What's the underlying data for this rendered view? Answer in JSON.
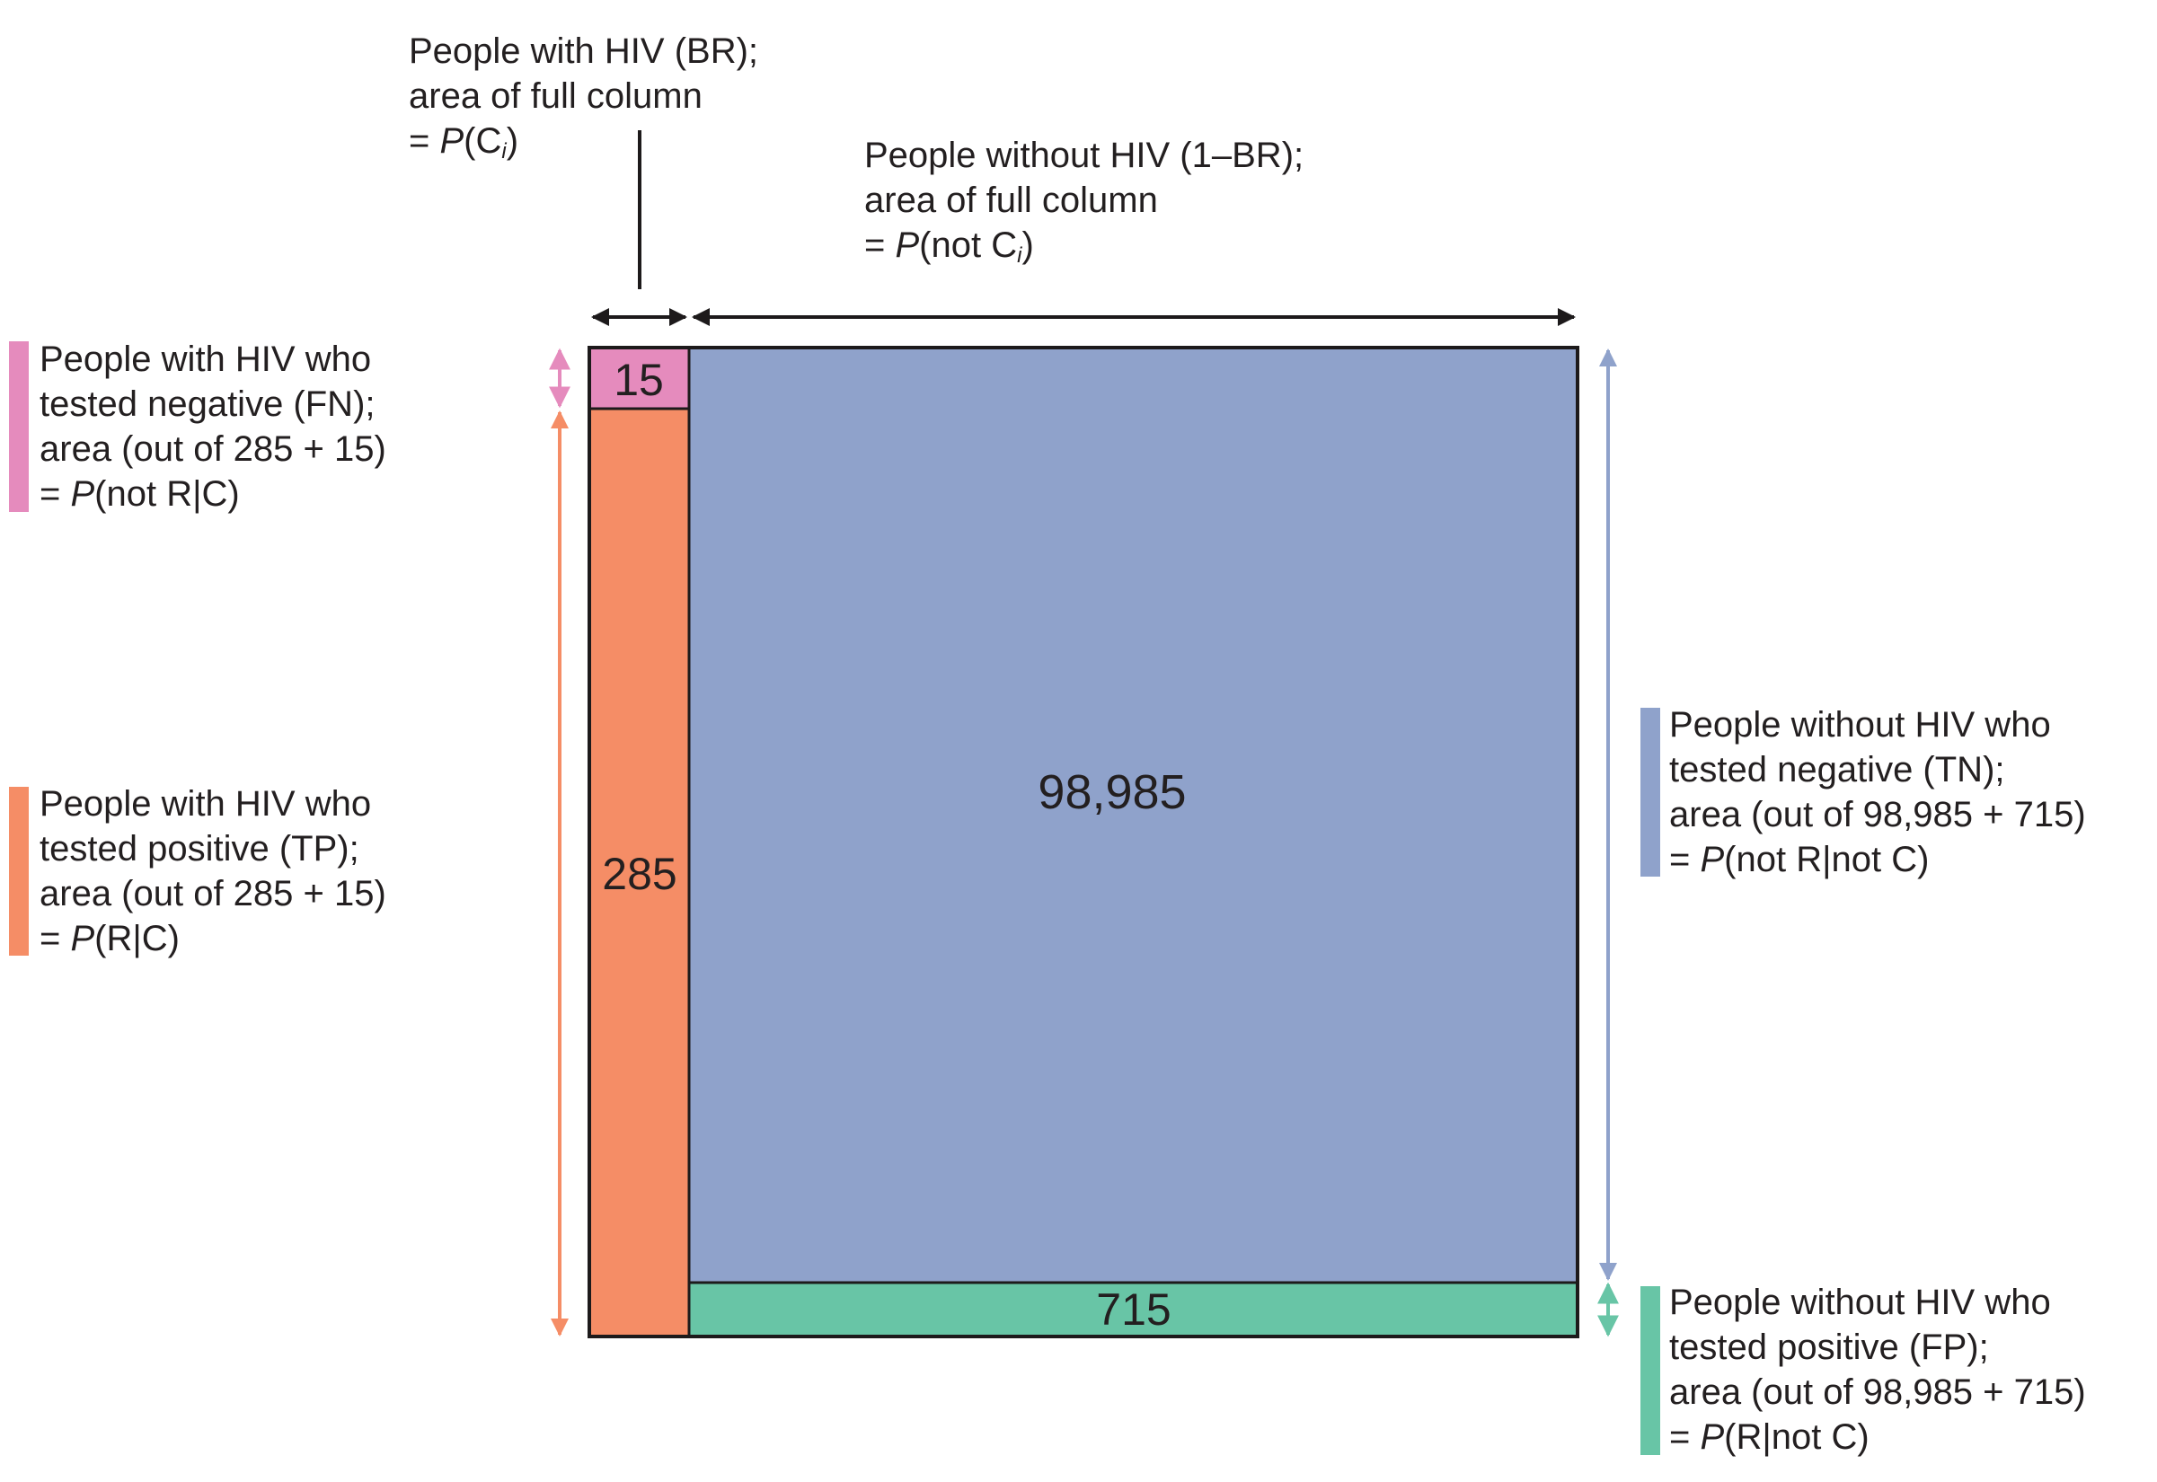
{
  "colors": {
    "fn": "#e58bbd",
    "tp": "#f58d66",
    "tn": "#8fa2cb",
    "fp": "#68c5a6",
    "outline": "#1d1a1b",
    "text": "#231f20"
  },
  "cells": {
    "fn": "15",
    "tp": "285",
    "tn": "98,985",
    "fp": "715"
  },
  "labels": {
    "with_hiv": {
      "line1": "People with HIV (BR);",
      "line2": "area of full column",
      "line3_prefix": "= ",
      "line3_p": "P",
      "line3_open": "(C",
      "line3_sub": "i",
      "line3_close": ")"
    },
    "without_hiv": {
      "line1": "People without HIV (1–BR);",
      "line2": "area of full column",
      "line3_prefix": "= ",
      "line3_p": "P",
      "line3_open": "(not C",
      "line3_sub": "i",
      "line3_close": ")"
    },
    "fn": {
      "line1": "People with HIV who",
      "line2": "tested negative (FN);",
      "line3": "area (out of 285 + 15)",
      "line4_prefix": "= ",
      "line4_p": "P",
      "line4_rest": "(not R|C)"
    },
    "tp": {
      "line1": "People with HIV who",
      "line2": "tested positive (TP);",
      "line3": "area (out of 285 + 15)",
      "line4_prefix": "= ",
      "line4_p": "P",
      "line4_rest": "(R|C)"
    },
    "tn": {
      "line1": "People without HIV who",
      "line2": "tested negative (TN);",
      "line3": "area (out of 98,985 + 715)",
      "line4_prefix": "= ",
      "line4_p": "P",
      "line4_rest": "(not R|not C)"
    },
    "fp": {
      "line1": "People without HIV who",
      "line2": "tested positive (FP);",
      "line3": "area (out of 98,985 + 715)",
      "line4_prefix": "= ",
      "line4_p": "P",
      "line4_rest": "(R|not C)"
    }
  }
}
